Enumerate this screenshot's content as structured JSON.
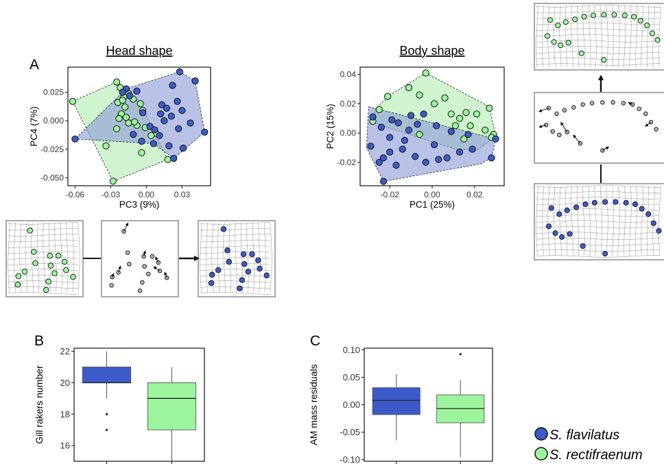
{
  "labels": {
    "panel_a": "A",
    "panel_b": "B",
    "panel_c": "C",
    "head_title": "Head shape",
    "body_title": "Body shape"
  },
  "colors": {
    "flavilatus": "#3d5bc8",
    "rectifraenum": "#9cf59c",
    "hull_flavilatus": "#8e9bd9",
    "hull_rectifraenum": "#c8f2c8",
    "grey_point": "#b8b8b8",
    "grid": "#9a9a9a",
    "frame": "#a8a8a8"
  },
  "legend": [
    {
      "name": "S. flavilatus",
      "color": "#3d5bc8"
    },
    {
      "name": "S. rectifraenum",
      "color": "#9cf59c"
    }
  ],
  "chart_data": [
    {
      "id": "head",
      "type": "scatter",
      "title": "Head shape",
      "xlabel": "PC3 (9%)",
      "ylabel": "PC4 (7%)",
      "xlim": [
        -0.066,
        0.054
      ],
      "ylim": [
        -0.057,
        0.047
      ],
      "xticks": [
        -0.06,
        -0.03,
        0.0,
        0.03
      ],
      "xtick_labels": [
        "-0.06",
        "-0.03",
        "0.00",
        "0.03"
      ],
      "yticks": [
        -0.05,
        -0.025,
        0.0,
        0.025
      ],
      "ytick_labels": [
        "-0.050",
        "-0.025",
        "0.000",
        "0.025"
      ],
      "series": [
        {
          "name": "S. flavilatus",
          "points": [
            [
              0.028,
              0.043
            ],
            [
              0.041,
              0.035
            ],
            [
              0.022,
              0.031
            ],
            [
              -0.017,
              0.028
            ],
            [
              -0.008,
              0.026
            ],
            [
              -0.014,
              0.022
            ],
            [
              0.026,
              0.017
            ],
            [
              0.013,
              0.014
            ],
            [
              0.03,
              0.009
            ],
            [
              0.021,
              0.004
            ],
            [
              0.012,
              0.006
            ],
            [
              -0.003,
              0.007
            ],
            [
              0.015,
              0.0
            ],
            [
              0.037,
              -0.002
            ],
            [
              0.003,
              -0.005
            ],
            [
              0.007,
              -0.008
            ],
            [
              0.027,
              -0.007
            ],
            [
              -0.011,
              -0.012
            ],
            [
              0.049,
              -0.01
            ],
            [
              0.011,
              -0.013
            ],
            [
              -0.004,
              -0.018
            ],
            [
              0.006,
              -0.02
            ],
            [
              0.019,
              -0.022
            ],
            [
              -0.06,
              -0.016
            ],
            [
              0.031,
              -0.024
            ],
            [
              0.023,
              -0.033
            ],
            [
              -0.02,
              0.025
            ],
            [
              0.017,
              0.011
            ]
          ]
        },
        {
          "name": "S. rectifraenum",
          "points": [
            [
              -0.025,
              0.034
            ],
            [
              -0.022,
              0.029
            ],
            [
              -0.015,
              0.024
            ],
            [
              -0.019,
              0.021
            ],
            [
              -0.011,
              0.019
            ],
            [
              -0.062,
              0.017
            ],
            [
              -0.024,
              0.016
            ],
            [
              -0.005,
              0.015
            ],
            [
              -0.018,
              0.012
            ],
            [
              -0.003,
              0.009
            ],
            [
              -0.021,
              0.006
            ],
            [
              -0.017,
              0.003
            ],
            [
              -0.023,
              0.002
            ],
            [
              -0.015,
              -0.002
            ],
            [
              -0.008,
              -0.004
            ],
            [
              -0.001,
              -0.006
            ],
            [
              -0.025,
              -0.007
            ],
            [
              0.008,
              -0.011
            ],
            [
              0.004,
              -0.013
            ],
            [
              -0.034,
              -0.022
            ],
            [
              -0.004,
              -0.028
            ],
            [
              0.018,
              -0.034
            ],
            [
              -0.028,
              -0.053
            ],
            [
              -0.02,
              0.018
            ],
            [
              -0.01,
              -0.001
            ]
          ]
        }
      ],
      "hulls": [
        {
          "name": "S. flavilatus",
          "points": [
            [
              0.028,
              0.043
            ],
            [
              0.041,
              0.035
            ],
            [
              0.049,
              -0.01
            ],
            [
              0.023,
              -0.033
            ],
            [
              0.006,
              -0.02
            ],
            [
              -0.06,
              -0.016
            ],
            [
              -0.017,
              0.028
            ]
          ]
        },
        {
          "name": "S. rectifraenum",
          "points": [
            [
              -0.025,
              0.034
            ],
            [
              -0.005,
              0.015
            ],
            [
              0.018,
              -0.034
            ],
            [
              -0.028,
              -0.053
            ],
            [
              -0.062,
              0.017
            ]
          ]
        }
      ]
    },
    {
      "id": "body",
      "type": "scatter",
      "title": "Body shape",
      "xlabel": "PC1 (25%)",
      "ylabel": "PC2 (15%)",
      "xlim": [
        -0.034,
        0.034
      ],
      "ylim": [
        -0.036,
        0.045
      ],
      "xticks": [
        -0.02,
        0.0,
        0.02
      ],
      "xtick_labels": [
        "-0.02",
        "0.00",
        "0.02"
      ],
      "yticks": [
        -0.02,
        0.0,
        0.02,
        0.04
      ],
      "ytick_labels": [
        "-0.02",
        "0.00",
        "0.02",
        "0.04"
      ],
      "series": [
        {
          "name": "S. flavilatus",
          "points": [
            [
              -0.028,
              0.011
            ],
            [
              -0.019,
              0.009
            ],
            [
              -0.01,
              0.012
            ],
            [
              -0.004,
              0.013
            ],
            [
              -0.016,
              0.007
            ],
            [
              -0.024,
              0.004
            ],
            [
              -0.007,
              0.006
            ],
            [
              0.002,
              0.005
            ],
            [
              -0.02,
              -0.003
            ],
            [
              -0.011,
              0.002
            ],
            [
              0.009,
              0.001
            ],
            [
              0.017,
              -0.001
            ],
            [
              -0.029,
              -0.009
            ],
            [
              -0.02,
              -0.013
            ],
            [
              -0.014,
              -0.011
            ],
            [
              -0.023,
              -0.017
            ],
            [
              -0.017,
              -0.022
            ],
            [
              -0.008,
              -0.016
            ],
            [
              0.003,
              -0.018
            ],
            [
              -0.003,
              -0.02
            ],
            [
              0.007,
              -0.017
            ],
            [
              0.013,
              -0.013
            ],
            [
              0.019,
              -0.011
            ],
            [
              -0.025,
              -0.02
            ],
            [
              -0.023,
              -0.033
            ],
            [
              0.028,
              -0.017
            ],
            [
              0.03,
              -0.004
            ],
            [
              -0.013,
              -0.005
            ],
            [
              0.001,
              -0.008
            ]
          ]
        },
        {
          "name": "S. rectifraenum",
          "points": [
            [
              -0.003,
              0.041
            ],
            [
              -0.011,
              0.031
            ],
            [
              -0.021,
              0.025
            ],
            [
              -0.006,
              0.026
            ],
            [
              0.006,
              0.024
            ],
            [
              0.001,
              0.02
            ],
            [
              -0.025,
              0.016
            ],
            [
              0.013,
              0.01
            ],
            [
              0.016,
              0.014
            ],
            [
              0.021,
              0.013
            ],
            [
              0.027,
              0.017
            ],
            [
              -0.028,
              0.008
            ],
            [
              0.011,
              0.005
            ],
            [
              0.018,
              0.005
            ],
            [
              0.025,
              0.002
            ],
            [
              0.029,
              -0.001
            ],
            [
              0.028,
              -0.003
            ],
            [
              0.009,
              0.013
            ],
            [
              -0.006,
              -0.001
            ],
            [
              0.015,
              -0.004
            ]
          ]
        }
      ],
      "hulls": [
        {
          "name": "S. flavilatus",
          "points": [
            [
              -0.03,
              0.018
            ],
            [
              0.03,
              -0.004
            ],
            [
              0.028,
              -0.017
            ],
            [
              0.023,
              -0.021
            ],
            [
              -0.023,
              -0.033
            ],
            [
              -0.031,
              -0.01
            ]
          ]
        },
        {
          "name": "S. rectifraenum",
          "points": [
            [
              -0.003,
              0.041
            ],
            [
              0.027,
              0.018
            ],
            [
              0.03,
              -0.002
            ],
            [
              0.021,
              -0.012
            ],
            [
              0.011,
              -0.011
            ],
            [
              -0.028,
              0.007
            ],
            [
              -0.027,
              0.016
            ],
            [
              -0.021,
              0.025
            ]
          ]
        }
      ]
    },
    {
      "id": "gill",
      "type": "box",
      "ylabel": "Gill rakers number",
      "ylim": [
        15,
        22.2
      ],
      "yticks": [
        16,
        18,
        20,
        22
      ],
      "ytick_labels": [
        "16",
        "18",
        "20",
        "22"
      ],
      "boxes": [
        {
          "name": "S. flavilatus",
          "whisker_low": 19,
          "q1": 20,
          "median": 20,
          "q3": 21,
          "whisker_high": 22,
          "outliers": [
            18,
            17
          ]
        },
        {
          "name": "S. rectifraenum",
          "whisker_low": 15,
          "q1": 17,
          "median": 19,
          "q3": 20,
          "whisker_high": 21,
          "outliers": []
        }
      ]
    },
    {
      "id": "am",
      "type": "box",
      "ylabel": "AM mass residuals",
      "ylim": [
        -0.103,
        0.103
      ],
      "yticks": [
        -0.1,
        -0.05,
        0.0,
        0.05,
        0.1
      ],
      "ytick_labels": [
        "-0.10",
        "-0.05",
        "0.00",
        "0.05",
        "0.10"
      ],
      "boxes": [
        {
          "name": "S. flavilatus",
          "whisker_low": -0.065,
          "q1": -0.018,
          "median": 0.008,
          "q3": 0.031,
          "whisker_high": 0.056,
          "outliers": []
        },
        {
          "name": "S. rectifraenum",
          "whisker_low": -0.096,
          "q1": -0.033,
          "median": -0.007,
          "q3": 0.018,
          "whisker_high": 0.045,
          "outliers": [
            0.092
          ]
        }
      ]
    }
  ]
}
